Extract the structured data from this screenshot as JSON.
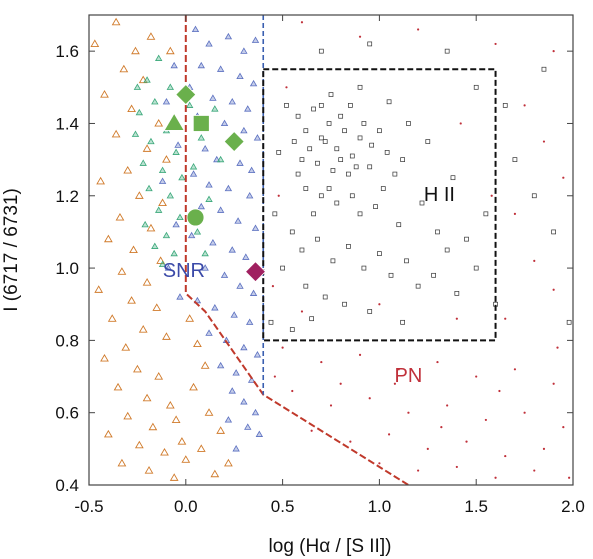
{
  "chart_data": {
    "type": "scatter",
    "xlabel": "log (Hα / [S II])",
    "ylabel": "I (6717 / 6731)",
    "xlim": [
      -0.5,
      2.0
    ],
    "ylim": [
      0.4,
      1.7
    ],
    "x_ticks": [
      "-0.5",
      "0.0",
      "0.5",
      "1.0",
      "1.5",
      "2.0"
    ],
    "y_ticks": [
      "0.4",
      "0.6",
      "0.8",
      "1.0",
      "1.2",
      "1.4",
      "1.6"
    ],
    "grid": false,
    "legend": "none",
    "region_labels": [
      {
        "text": "SNR",
        "x": -0.01,
        "y": 0.99,
        "color": "#3b4aa8"
      },
      {
        "text": "H II",
        "x": 1.31,
        "y": 1.2,
        "color": "#111111"
      },
      {
        "text": "PN",
        "x": 1.15,
        "y": 0.7,
        "color": "#c0303a"
      }
    ],
    "boundaries": {
      "snr_red_dashed": {
        "color": "#c0392b",
        "x": [
          0.0,
          0.0,
          0.1,
          0.4,
          1.15
        ],
        "y": [
          1.7,
          0.93,
          0.88,
          0.65,
          0.4
        ]
      },
      "blue_dashed_vertical": {
        "color": "#3a5fb0",
        "x": [
          0.4,
          0.4
        ],
        "y": [
          1.7,
          0.65
        ]
      },
      "hii_box": {
        "color": "#111111",
        "x0": 0.4,
        "x1": 1.6,
        "y0": 0.8,
        "y1": 1.55
      }
    },
    "highlighted": [
      {
        "shape": "diamond",
        "color": "#6ab04c",
        "x": 0.0,
        "y": 1.48
      },
      {
        "shape": "triangle",
        "color": "#6ab04c",
        "x": -0.06,
        "y": 1.4
      },
      {
        "shape": "square",
        "color": "#6ab04c",
        "x": 0.08,
        "y": 1.4
      },
      {
        "shape": "diamond",
        "color": "#6ab04c",
        "x": 0.25,
        "y": 1.35
      },
      {
        "shape": "circle",
        "color": "#6ab04c",
        "x": 0.05,
        "y": 1.14
      },
      {
        "shape": "diamond",
        "color": "#a02060",
        "x": 0.36,
        "y": 0.99
      }
    ],
    "series": [
      {
        "marker": "hollow-triangle",
        "color": "#d07a2a",
        "points": [
          [
            -0.36,
            1.68
          ],
          [
            -0.18,
            1.64
          ],
          [
            -0.32,
            1.55
          ],
          [
            -0.22,
            1.52
          ],
          [
            -0.42,
            1.48
          ],
          [
            -0.28,
            1.44
          ],
          [
            -0.14,
            1.4
          ],
          [
            -0.36,
            1.37
          ],
          [
            -0.2,
            1.33
          ],
          [
            -0.1,
            1.3
          ],
          [
            -0.3,
            1.27
          ],
          [
            -0.44,
            1.24
          ],
          [
            -0.24,
            1.2
          ],
          [
            -0.12,
            1.18
          ],
          [
            -0.34,
            1.14
          ],
          [
            -0.18,
            1.11
          ],
          [
            -0.4,
            1.08
          ],
          [
            -0.27,
            1.05
          ],
          [
            -0.13,
            1.02
          ],
          [
            -0.33,
            0.99
          ],
          [
            -0.2,
            0.96
          ],
          [
            -0.45,
            0.94
          ],
          [
            -0.28,
            0.91
          ],
          [
            -0.15,
            0.89
          ],
          [
            -0.38,
            0.86
          ],
          [
            -0.22,
            0.83
          ],
          [
            -0.1,
            0.81
          ],
          [
            -0.31,
            0.78
          ],
          [
            -0.42,
            0.75
          ],
          [
            -0.25,
            0.72
          ],
          [
            -0.14,
            0.7
          ],
          [
            -0.35,
            0.67
          ],
          [
            -0.2,
            0.64
          ],
          [
            -0.08,
            0.62
          ],
          [
            -0.3,
            0.59
          ],
          [
            -0.17,
            0.56
          ],
          [
            -0.4,
            0.54
          ],
          [
            -0.24,
            0.51
          ],
          [
            -0.11,
            0.49
          ],
          [
            -0.33,
            0.46
          ],
          [
            -0.19,
            0.44
          ],
          [
            -0.06,
            0.42
          ],
          [
            0.02,
            0.86
          ],
          [
            0.06,
            0.79
          ],
          [
            0.1,
            0.73
          ],
          [
            0.04,
            0.67
          ],
          [
            0.12,
            0.6
          ],
          [
            0.18,
            0.55
          ],
          [
            0.08,
            0.5
          ],
          [
            0.22,
            0.46
          ],
          [
            0.15,
            0.43
          ],
          [
            -0.05,
            0.58
          ],
          [
            -0.02,
            0.52
          ],
          [
            0.0,
            0.47
          ],
          [
            -0.47,
            1.62
          ],
          [
            -0.08,
            1.6
          ],
          [
            -0.26,
            1.6
          ]
        ]
      },
      {
        "marker": "small-triangle",
        "color": "#5a6fc0",
        "points": [
          [
            0.05,
            1.66
          ],
          [
            0.12,
            1.62
          ],
          [
            0.22,
            1.64
          ],
          [
            0.3,
            1.6
          ],
          [
            0.36,
            1.63
          ],
          [
            0.08,
            1.56
          ],
          [
            0.18,
            1.55
          ],
          [
            0.28,
            1.53
          ],
          [
            0.35,
            1.51
          ],
          [
            0.02,
            1.5
          ],
          [
            0.14,
            1.47
          ],
          [
            0.24,
            1.46
          ],
          [
            0.32,
            1.44
          ],
          [
            0.06,
            1.42
          ],
          [
            0.2,
            1.4
          ],
          [
            0.3,
            1.38
          ],
          [
            0.37,
            1.36
          ],
          [
            0.1,
            1.33
          ],
          [
            0.16,
            1.3
          ],
          [
            0.28,
            1.29
          ],
          [
            0.34,
            1.27
          ],
          [
            0.04,
            1.26
          ],
          [
            0.12,
            1.23
          ],
          [
            0.22,
            1.22
          ],
          [
            0.33,
            1.2
          ],
          [
            0.08,
            1.17
          ],
          [
            0.18,
            1.16
          ],
          [
            0.27,
            1.13
          ],
          [
            0.36,
            1.11
          ],
          [
            0.03,
            1.09
          ],
          [
            0.14,
            1.07
          ],
          [
            0.24,
            1.05
          ],
          [
            0.31,
            1.03
          ],
          [
            0.1,
            1.0
          ],
          [
            0.2,
            0.98
          ],
          [
            0.28,
            0.95
          ],
          [
            0.35,
            0.93
          ],
          [
            0.06,
            0.91
          ],
          [
            0.15,
            0.89
          ],
          [
            0.25,
            0.87
          ],
          [
            0.33,
            0.85
          ],
          [
            0.12,
            0.82
          ],
          [
            0.21,
            0.8
          ],
          [
            0.3,
            0.78
          ],
          [
            0.37,
            0.76
          ],
          [
            0.18,
            0.73
          ],
          [
            0.26,
            0.71
          ],
          [
            0.34,
            0.69
          ],
          [
            0.24,
            0.66
          ],
          [
            0.3,
            0.63
          ],
          [
            0.36,
            0.6
          ],
          [
            0.22,
            0.58
          ],
          [
            0.32,
            0.56
          ],
          [
            0.38,
            0.54
          ],
          [
            -0.06,
            1.56
          ],
          [
            -0.1,
            1.46
          ],
          [
            -0.04,
            1.34
          ],
          [
            -0.12,
            1.24
          ],
          [
            -0.05,
            1.12
          ],
          [
            -0.09,
            1.0
          ],
          [
            -0.03,
            0.92
          ],
          [
            0.26,
            0.5
          ]
        ]
      },
      {
        "marker": "small-triangle",
        "color": "#3aa87a",
        "points": [
          [
            -0.14,
            1.58
          ],
          [
            -0.2,
            1.52
          ],
          [
            -0.08,
            1.5
          ],
          [
            -0.16,
            1.46
          ],
          [
            -0.24,
            1.43
          ],
          [
            -0.1,
            1.38
          ],
          [
            -0.18,
            1.35
          ],
          [
            -0.05,
            1.32
          ],
          [
            -0.22,
            1.29
          ],
          [
            -0.12,
            1.27
          ],
          [
            -0.02,
            1.25
          ],
          [
            -0.19,
            1.22
          ],
          [
            -0.08,
            1.2
          ],
          [
            -0.14,
            1.16
          ],
          [
            -0.03,
            1.14
          ],
          [
            -0.21,
            1.12
          ],
          [
            -0.1,
            1.09
          ],
          [
            -0.16,
            1.06
          ],
          [
            -0.06,
            1.04
          ],
          [
            -0.12,
            1.01
          ],
          [
            0.02,
            1.45
          ],
          [
            0.08,
            1.36
          ],
          [
            0.04,
            1.28
          ],
          [
            0.12,
            1.19
          ],
          [
            0.06,
            1.1
          ],
          [
            0.1,
            1.04
          ],
          [
            -0.25,
            1.5
          ],
          [
            -0.26,
            1.37
          ],
          [
            0.15,
            1.44
          ],
          [
            0.18,
            1.3
          ]
        ]
      },
      {
        "marker": "small-square",
        "color": "#333333",
        "points": [
          [
            0.58,
            1.42
          ],
          [
            0.62,
            1.38
          ],
          [
            0.66,
            1.44
          ],
          [
            0.7,
            1.36
          ],
          [
            0.74,
            1.4
          ],
          [
            0.78,
            1.33
          ],
          [
            0.82,
            1.38
          ],
          [
            0.86,
            1.31
          ],
          [
            0.9,
            1.36
          ],
          [
            0.64,
            1.33
          ],
          [
            0.68,
            1.29
          ],
          [
            0.72,
            1.35
          ],
          [
            0.76,
            1.27
          ],
          [
            0.8,
            1.3
          ],
          [
            0.84,
            1.26
          ],
          [
            0.88,
            1.28
          ],
          [
            0.6,
            1.3
          ],
          [
            0.56,
            1.35
          ],
          [
            0.7,
            1.45
          ],
          [
            0.75,
            1.48
          ],
          [
            0.8,
            1.42
          ],
          [
            0.85,
            1.45
          ],
          [
            0.92,
            1.4
          ],
          [
            0.96,
            1.34
          ],
          [
            1.0,
            1.38
          ],
          [
            0.95,
            1.28
          ],
          [
            0.74,
            1.22
          ],
          [
            0.78,
            1.18
          ],
          [
            0.7,
            1.2
          ],
          [
            0.66,
            1.15
          ],
          [
            0.62,
            1.22
          ],
          [
            0.86,
            1.2
          ],
          [
            0.9,
            1.15
          ],
          [
            0.58,
            1.26
          ],
          [
            1.04,
            1.32
          ],
          [
            1.08,
            1.26
          ],
          [
            1.12,
            1.3
          ],
          [
            1.02,
            1.22
          ],
          [
            0.98,
            1.17
          ],
          [
            1.1,
            1.12
          ],
          [
            0.55,
            1.1
          ],
          [
            0.6,
            1.05
          ],
          [
            0.68,
            1.08
          ],
          [
            0.76,
            1.02
          ],
          [
            0.84,
            1.06
          ],
          [
            0.92,
            1.0
          ],
          [
            1.0,
            1.04
          ],
          [
            1.06,
            0.98
          ],
          [
            1.14,
            1.02
          ],
          [
            1.2,
            0.95
          ],
          [
            0.62,
            0.95
          ],
          [
            0.72,
            0.92
          ],
          [
            0.82,
            0.9
          ],
          [
            0.5,
            1.0
          ],
          [
            0.46,
            1.15
          ],
          [
            0.48,
            1.32
          ],
          [
            0.52,
            1.45
          ],
          [
            0.9,
            1.5
          ],
          [
            1.05,
            1.46
          ],
          [
            1.15,
            1.4
          ],
          [
            1.25,
            1.35
          ],
          [
            1.22,
            1.18
          ],
          [
            1.3,
            1.1
          ],
          [
            1.35,
            1.05
          ],
          [
            1.28,
            0.98
          ],
          [
            1.4,
            0.93
          ],
          [
            1.45,
            1.08
          ],
          [
            1.5,
            1.0
          ],
          [
            1.38,
            1.25
          ],
          [
            1.55,
            1.15
          ],
          [
            1.6,
            0.9
          ],
          [
            1.7,
            1.3
          ],
          [
            1.8,
            1.2
          ],
          [
            1.65,
            1.45
          ],
          [
            1.9,
            1.1
          ],
          [
            0.44,
            0.85
          ],
          [
            0.55,
            0.83
          ],
          [
            0.65,
            0.86
          ],
          [
            0.95,
            0.88
          ],
          [
            1.12,
            0.85
          ],
          [
            1.5,
            1.5
          ],
          [
            1.85,
            1.55
          ],
          [
            0.7,
            1.6
          ],
          [
            0.95,
            1.62
          ],
          [
            1.35,
            1.6
          ],
          [
            1.98,
            0.85
          ]
        ]
      },
      {
        "marker": "dot",
        "color": "#c0303a",
        "points": [
          [
            0.6,
            1.68
          ],
          [
            0.9,
            1.64
          ],
          [
            1.2,
            1.66
          ],
          [
            1.6,
            1.62
          ],
          [
            1.9,
            1.6
          ],
          [
            1.75,
            1.45
          ],
          [
            1.85,
            1.35
          ],
          [
            1.95,
            1.25
          ],
          [
            1.7,
            1.15
          ],
          [
            1.8,
            1.02
          ],
          [
            1.9,
            0.94
          ],
          [
            1.65,
            0.86
          ],
          [
            0.5,
            0.78
          ],
          [
            0.7,
            0.74
          ],
          [
            0.9,
            0.76
          ],
          [
            1.1,
            0.72
          ],
          [
            1.3,
            0.74
          ],
          [
            1.5,
            0.7
          ],
          [
            1.7,
            0.72
          ],
          [
            1.9,
            0.68
          ],
          [
            0.55,
            0.66
          ],
          [
            0.75,
            0.62
          ],
          [
            0.95,
            0.64
          ],
          [
            1.15,
            0.6
          ],
          [
            1.35,
            0.62
          ],
          [
            1.55,
            0.58
          ],
          [
            1.75,
            0.6
          ],
          [
            1.95,
            0.56
          ],
          [
            0.65,
            0.55
          ],
          [
            0.85,
            0.52
          ],
          [
            1.05,
            0.54
          ],
          [
            1.25,
            0.5
          ],
          [
            1.45,
            0.52
          ],
          [
            1.65,
            0.48
          ],
          [
            1.85,
            0.5
          ],
          [
            1.0,
            0.46
          ],
          [
            1.2,
            0.44
          ],
          [
            1.4,
            0.45
          ],
          [
            1.6,
            0.42
          ],
          [
            1.8,
            0.44
          ],
          [
            1.98,
            0.42
          ],
          [
            0.45,
            0.95
          ],
          [
            0.6,
            0.88
          ],
          [
            1.0,
            0.9
          ],
          [
            1.4,
            0.86
          ],
          [
            0.48,
            1.2
          ],
          [
            0.52,
            1.5
          ],
          [
            1.42,
            1.4
          ],
          [
            1.58,
            1.2
          ],
          [
            0.46,
            0.7
          ],
          [
            1.92,
            0.78
          ],
          [
            1.62,
            0.66
          ],
          [
            1.32,
            0.56
          ],
          [
            1.08,
            0.68
          ],
          [
            0.8,
            0.68
          ]
        ]
      }
    ]
  }
}
